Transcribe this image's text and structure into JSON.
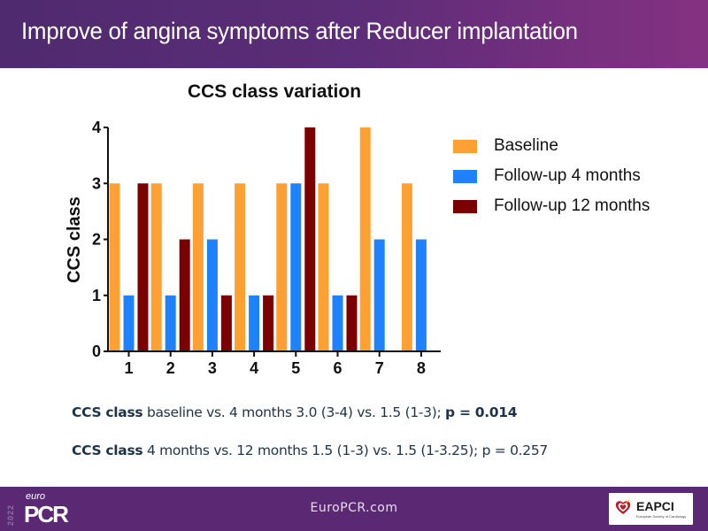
{
  "header": {
    "title": "Improve of angina symptoms after Reducer implantation"
  },
  "chart_data": {
    "type": "bar",
    "title": "CCS class variation",
    "xlabel": "",
    "ylabel": "CCS class",
    "ylim": [
      0,
      4
    ],
    "yticks": [
      "0",
      "1",
      "2",
      "3",
      "4"
    ],
    "categories": [
      "1",
      "2",
      "3",
      "4",
      "5",
      "6",
      "7",
      "8"
    ],
    "series": [
      {
        "name": "Baseline",
        "color": "#FFA033",
        "values": [
          3,
          3,
          3,
          3,
          3,
          3,
          4,
          3
        ]
      },
      {
        "name": "Follow-up 4 months",
        "color": "#1E82FF",
        "values": [
          1,
          1,
          2,
          1,
          3,
          1,
          2,
          2
        ]
      },
      {
        "name": "Follow-up 12 months",
        "color": "#7B0000",
        "values": [
          3,
          2,
          1,
          1,
          4,
          1,
          null,
          null
        ]
      }
    ],
    "legend_position": "right",
    "grid": false
  },
  "stats": {
    "line1": {
      "label": "CCS class",
      "text": " baseline vs. 4 months 3.0 (3-4) vs. 1.5 (1-3); ",
      "pvalue": "p = 0.014"
    },
    "line2": {
      "label": "CCS class",
      "text": " 4 months vs. 12 months 1.5 (1-3) vs. 1.5 (1-3.25); p = 0.257"
    }
  },
  "footer": {
    "url": "EuroPCR.com",
    "logo_left": {
      "year": "2022",
      "euro": "euro",
      "brand": "PCR"
    },
    "logo_right": {
      "name": "EAPCI",
      "subtitle": "European Society of Cardiology"
    }
  }
}
